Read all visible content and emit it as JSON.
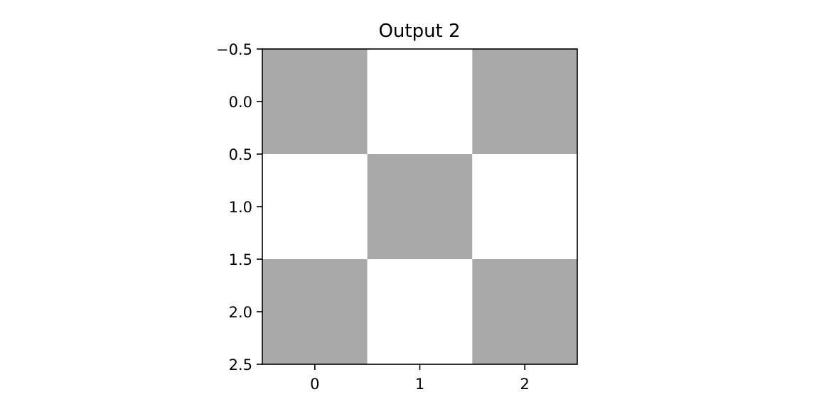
{
  "chart_data": {
    "type": "heatmap",
    "title": "Output 2",
    "xlabel": "",
    "ylabel": "",
    "x_ticks": [
      0,
      1,
      2
    ],
    "x_tick_labels": [
      "0",
      "1",
      "2"
    ],
    "y_ticks": [
      -0.5,
      0.0,
      0.5,
      1.0,
      1.5,
      2.0,
      2.5
    ],
    "y_tick_labels": [
      "−0.5",
      "0.0",
      "0.5",
      "1.0",
      "1.5",
      "2.0",
      "2.5"
    ],
    "xlim": [
      -0.5,
      2.5
    ],
    "ylim": [
      2.5,
      -0.5
    ],
    "grid": false,
    "cells": [
      [
        1,
        0,
        1
      ],
      [
        0,
        1,
        0
      ],
      [
        1,
        0,
        1
      ]
    ],
    "colors": {
      "filled": "#a9a9a9",
      "empty": "#ffffff",
      "axis": "#000000"
    }
  }
}
